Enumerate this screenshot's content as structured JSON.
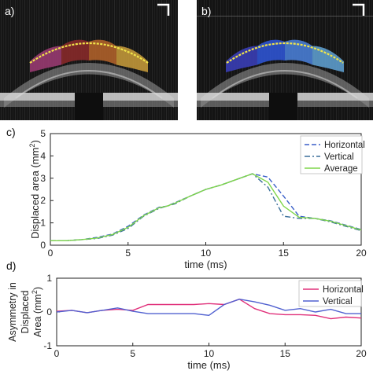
{
  "panels": {
    "a_label": "a)",
    "b_label": "b)",
    "c_label": "c)",
    "d_label": "d)"
  },
  "images": {
    "a": {
      "region_colors": [
        "#9b3b73",
        "#8a2a2a",
        "#b2622a",
        "#c59a3a"
      ],
      "contour_color": "#f0e44a"
    },
    "b": {
      "region_colors": [
        "#3a3fb8",
        "#2f55d6",
        "#4a7fd8",
        "#5f9fd0"
      ],
      "contour_color": "#f0e44a"
    }
  },
  "chart_data": [
    {
      "type": "line",
      "ylabel_main": "Displaced area (mm",
      "ylabel_sup": "2",
      "ylabel_end": ")",
      "xlabel": "time (ms)",
      "xlim": [
        0,
        20
      ],
      "ylim": [
        0,
        5
      ],
      "xticks": [
        "0",
        "5",
        "10",
        "15",
        "20"
      ],
      "yticks": [
        "0",
        "1",
        "2",
        "3",
        "4",
        "5"
      ],
      "legend_position": "top-right",
      "series": [
        {
          "name": "Horizontal",
          "color": "#3a5fc8",
          "dash": "dashed",
          "x": [
            0,
            1,
            2,
            3,
            4,
            5,
            6,
            7,
            7.5,
            8,
            9,
            10,
            11,
            12,
            13,
            14,
            15,
            16,
            17,
            18,
            19,
            20
          ],
          "y": [
            0.2,
            0.2,
            0.25,
            0.35,
            0.5,
            0.85,
            1.35,
            1.7,
            1.75,
            1.9,
            2.2,
            2.5,
            2.7,
            2.95,
            3.2,
            3.05,
            2.2,
            1.3,
            1.2,
            1.1,
            0.9,
            0.7
          ]
        },
        {
          "name": "Vertical",
          "color": "#3a6f9a",
          "dash": "dashdot",
          "x": [
            0,
            1,
            2,
            3,
            4,
            5,
            6,
            7,
            7.5,
            8,
            9,
            10,
            11,
            12,
            13,
            14,
            15,
            16,
            17,
            18,
            19,
            20
          ],
          "y": [
            0.2,
            0.2,
            0.25,
            0.3,
            0.45,
            0.75,
            1.3,
            1.65,
            1.75,
            1.85,
            2.2,
            2.5,
            2.7,
            2.95,
            3.2,
            2.6,
            1.3,
            1.2,
            1.2,
            1.05,
            0.85,
            0.65
          ]
        },
        {
          "name": "Average",
          "color": "#7fd64a",
          "dash": "solid",
          "x": [
            0,
            1,
            2,
            3,
            4,
            5,
            6,
            7,
            7.5,
            8,
            9,
            10,
            11,
            12,
            13,
            14,
            15,
            16,
            17,
            18,
            19,
            20
          ],
          "y": [
            0.2,
            0.2,
            0.25,
            0.32,
            0.48,
            0.8,
            1.32,
            1.68,
            1.75,
            1.88,
            2.2,
            2.5,
            2.7,
            2.95,
            3.2,
            2.82,
            1.75,
            1.25,
            1.2,
            1.08,
            0.88,
            0.68
          ]
        }
      ]
    },
    {
      "type": "line",
      "ylabel_line1": "Asymmetry in",
      "ylabel_line2": "Displaced",
      "ylabel_line3_main": "Area (mm",
      "ylabel_line3_sup": "2",
      "ylabel_line3_end": ")",
      "xlabel": "time (ms)",
      "xlim": [
        0,
        20
      ],
      "ylim": [
        -1,
        1
      ],
      "xticks": [
        "0",
        "5",
        "10",
        "15",
        "20"
      ],
      "yticks": [
        "-1",
        "0",
        "1"
      ],
      "legend_position": "top-right",
      "series": [
        {
          "name": "Horizontal",
          "color": "#e0307a",
          "dash": "solid",
          "x": [
            0,
            1,
            2,
            3,
            4,
            5,
            6,
            7,
            8,
            9,
            10,
            11,
            12,
            13,
            14,
            15,
            16,
            17,
            18,
            19,
            20
          ],
          "y": [
            0.02,
            0.05,
            -0.02,
            0.05,
            0.08,
            0.05,
            0.22,
            0.22,
            0.22,
            0.22,
            0.25,
            0.22,
            0.38,
            0.1,
            -0.05,
            -0.08,
            -0.08,
            -0.1,
            -0.2,
            -0.15,
            -0.18
          ]
        },
        {
          "name": "Vertical",
          "color": "#5060d0",
          "dash": "solid",
          "x": [
            0,
            1,
            2,
            3,
            4,
            5,
            6,
            7,
            8,
            9,
            10,
            11,
            12,
            13,
            14,
            15,
            16,
            17,
            18,
            19,
            20
          ],
          "y": [
            0.0,
            0.05,
            -0.02,
            0.05,
            0.12,
            0.02,
            -0.05,
            -0.05,
            -0.05,
            -0.05,
            -0.1,
            0.22,
            0.38,
            0.3,
            0.2,
            0.05,
            0.1,
            0.0,
            0.08,
            -0.05,
            -0.05
          ]
        }
      ]
    }
  ]
}
